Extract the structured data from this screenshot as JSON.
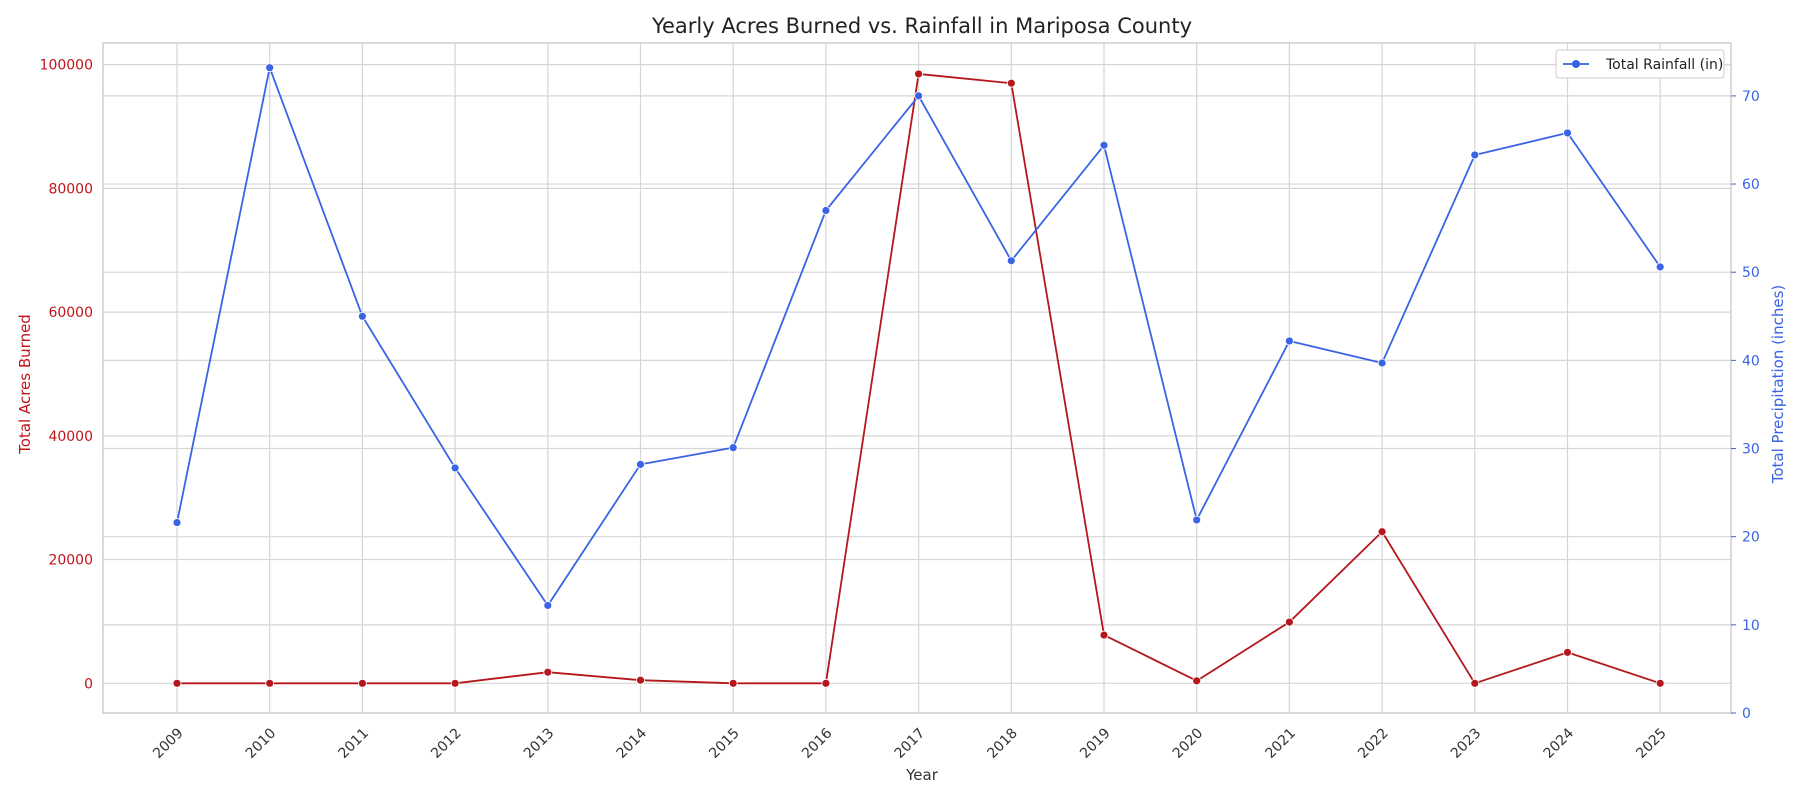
{
  "chart_data": {
    "type": "line",
    "title": "Yearly Acres Burned vs. Rainfall in Mariposa County",
    "xlabel": "Year",
    "ylabel_left": "Total Acres Burned",
    "ylabel_right": "Total Precipitation (inches)",
    "categories": [
      "2009",
      "2010",
      "2011",
      "2012",
      "2013",
      "2014",
      "2015",
      "2016",
      "2017",
      "2018",
      "2019",
      "2020",
      "2021",
      "2022",
      "2023",
      "2024",
      "2025"
    ],
    "ylim_left": [
      -4800,
      103500
    ],
    "ylim_right": [
      0,
      76
    ],
    "yticks_left": [
      0,
      20000,
      40000,
      60000,
      80000,
      100000
    ],
    "yticks_right": [
      0,
      10,
      20,
      30,
      40,
      50,
      60,
      70
    ],
    "grid": true,
    "legend_position": "top-right",
    "colors": {
      "acres": "#b5171d",
      "rain": "#3a64e3",
      "grid": "#d6d6d6",
      "frame": "#cfcfcf"
    },
    "series": [
      {
        "key": "acres",
        "axis": "left",
        "values": [
          0,
          0,
          0,
          0,
          1800,
          500,
          0,
          0,
          98500,
          97000,
          7800,
          400,
          9900,
          24500,
          0,
          5000,
          0
        ]
      },
      {
        "key": "rain",
        "axis": "right",
        "name": "Total Rainfall (in)",
        "values": [
          21.6,
          73.2,
          45.0,
          27.8,
          12.2,
          28.2,
          30.1,
          57.0,
          70.0,
          51.3,
          64.4,
          21.9,
          42.2,
          39.7,
          63.3,
          65.8,
          50.6
        ]
      }
    ]
  }
}
